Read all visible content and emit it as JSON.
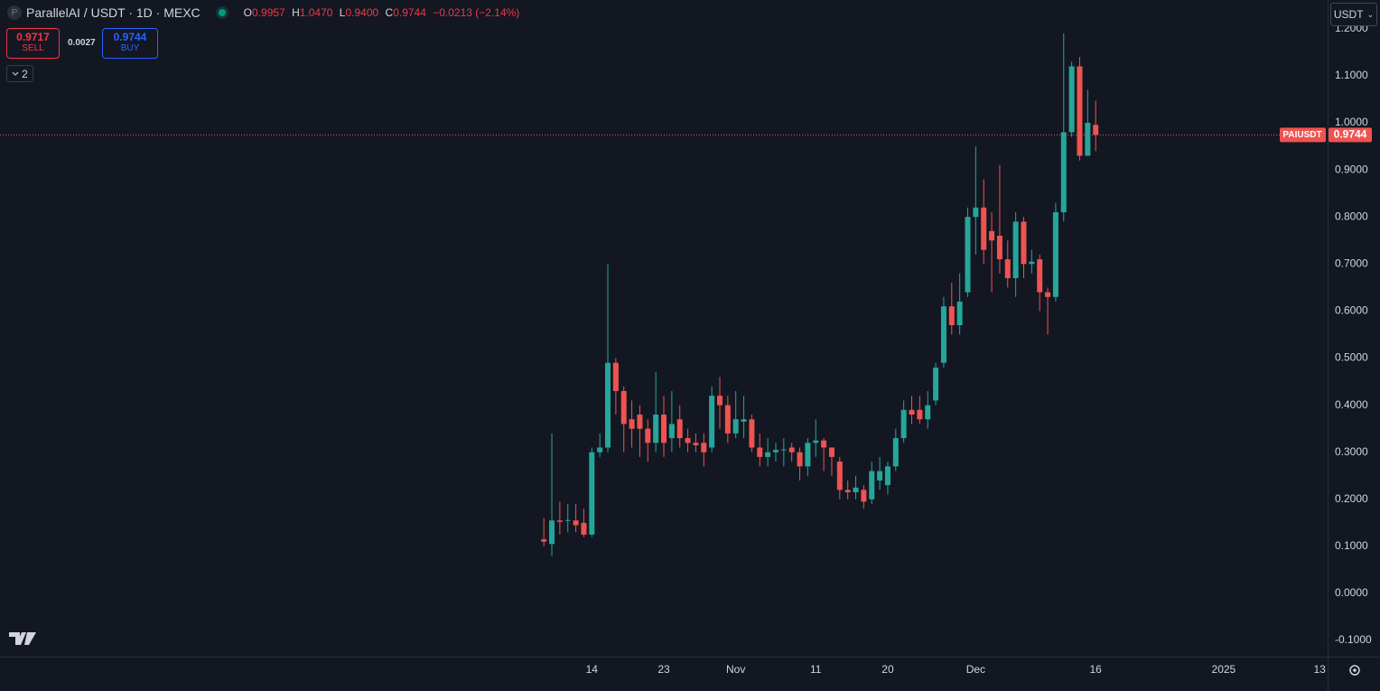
{
  "header": {
    "icon_letter": "P",
    "symbol": "ParallelAI / USDT · 1D · MEXC",
    "open_label": "O",
    "open": "0.9957",
    "high_label": "H",
    "high": "1.0470",
    "low_label": "L",
    "low": "0.9400",
    "close_label": "C",
    "close": "0.9744",
    "change": "−0.0213 (−2.14%)"
  },
  "trade": {
    "sell_price": "0.9717",
    "sell_label": "SELL",
    "spread": "0.0027",
    "buy_price": "0.9744",
    "buy_label": "BUY",
    "indicators_count": "2"
  },
  "currency_button": "USDT",
  "chart_data": {
    "type": "candlestick",
    "symbol_label": "PAIUSDT",
    "last_price": 0.9744,
    "up_color": "#26a69a",
    "down_color": "#ef5350",
    "grid": false,
    "x": [
      "2024-10-08",
      "2024-10-09",
      "2024-10-10",
      "2024-10-11",
      "2024-10-12",
      "2024-10-13",
      "2024-10-14",
      "2024-10-15",
      "2024-10-16",
      "2024-10-17",
      "2024-10-18",
      "2024-10-19",
      "2024-10-20",
      "2024-10-21",
      "2024-10-22",
      "2024-10-23",
      "2024-10-24",
      "2024-10-25",
      "2024-10-26",
      "2024-10-27",
      "2024-10-28",
      "2024-10-29",
      "2024-10-30",
      "2024-10-31",
      "2024-11-01",
      "2024-11-02",
      "2024-11-03",
      "2024-11-04",
      "2024-11-05",
      "2024-11-06",
      "2024-11-07",
      "2024-11-08",
      "2024-11-09",
      "2024-11-10",
      "2024-11-11",
      "2024-11-12",
      "2024-11-13",
      "2024-11-14",
      "2024-11-15",
      "2024-11-16",
      "2024-11-17",
      "2024-11-18",
      "2024-11-19",
      "2024-11-20",
      "2024-11-21",
      "2024-11-22",
      "2024-11-23",
      "2024-11-24",
      "2024-11-25",
      "2024-11-26",
      "2024-11-27",
      "2024-11-28",
      "2024-11-29",
      "2024-11-30",
      "2024-12-01",
      "2024-12-02",
      "2024-12-03",
      "2024-12-04",
      "2024-12-05",
      "2024-12-06",
      "2024-12-07",
      "2024-12-08",
      "2024-12-09",
      "2024-12-10",
      "2024-12-11",
      "2024-12-12",
      "2024-12-13",
      "2024-12-14",
      "2024-12-15",
      "2024-12-16"
    ],
    "open": [
      0.115,
      0.105,
      0.155,
      0.155,
      0.155,
      0.15,
      0.125,
      0.3,
      0.31,
      0.49,
      0.43,
      0.37,
      0.38,
      0.35,
      0.32,
      0.38,
      0.33,
      0.37,
      0.33,
      0.32,
      0.32,
      0.31,
      0.42,
      0.4,
      0.34,
      0.365,
      0.37,
      0.31,
      0.29,
      0.3,
      0.305,
      0.31,
      0.3,
      0.27,
      0.32,
      0.325,
      0.31,
      0.28,
      0.22,
      0.215,
      0.22,
      0.2,
      0.24,
      0.23,
      0.27,
      0.33,
      0.39,
      0.39,
      0.37,
      0.41,
      0.49,
      0.61,
      0.57,
      0.64,
      0.8,
      0.82,
      0.77,
      0.76,
      0.71,
      0.67,
      0.79,
      0.7,
      0.71,
      0.64,
      0.63,
      0.81,
      0.98,
      1.12,
      0.93,
      0.9957
    ],
    "high": [
      0.16,
      0.34,
      0.195,
      0.19,
      0.19,
      0.18,
      0.31,
      0.34,
      0.7,
      0.5,
      0.44,
      0.41,
      0.4,
      0.37,
      0.47,
      0.42,
      0.43,
      0.4,
      0.35,
      0.34,
      0.34,
      0.44,
      0.46,
      0.42,
      0.43,
      0.42,
      0.38,
      0.34,
      0.33,
      0.32,
      0.33,
      0.32,
      0.31,
      0.33,
      0.37,
      0.33,
      0.31,
      0.29,
      0.24,
      0.25,
      0.23,
      0.28,
      0.29,
      0.28,
      0.35,
      0.41,
      0.42,
      0.42,
      0.43,
      0.49,
      0.63,
      0.66,
      0.68,
      0.82,
      0.95,
      0.88,
      0.81,
      0.91,
      0.75,
      0.81,
      0.8,
      0.73,
      0.72,
      0.65,
      0.83,
      1.19,
      1.13,
      1.14,
      1.07,
      1.047
    ],
    "low": [
      0.1,
      0.08,
      0.125,
      0.13,
      0.13,
      0.12,
      0.12,
      0.29,
      0.3,
      0.38,
      0.3,
      0.31,
      0.29,
      0.28,
      0.3,
      0.29,
      0.3,
      0.31,
      0.3,
      0.3,
      0.27,
      0.3,
      0.35,
      0.32,
      0.33,
      0.33,
      0.3,
      0.27,
      0.27,
      0.28,
      0.27,
      0.28,
      0.24,
      0.25,
      0.29,
      0.26,
      0.25,
      0.2,
      0.2,
      0.2,
      0.18,
      0.19,
      0.22,
      0.21,
      0.26,
      0.32,
      0.36,
      0.36,
      0.35,
      0.4,
      0.48,
      0.55,
      0.55,
      0.63,
      0.72,
      0.7,
      0.64,
      0.68,
      0.65,
      0.63,
      0.67,
      0.68,
      0.6,
      0.55,
      0.62,
      0.79,
      0.97,
      0.92,
      0.93,
      0.94
    ],
    "close": [
      0.11,
      0.155,
      0.152,
      0.156,
      0.145,
      0.125,
      0.3,
      0.31,
      0.49,
      0.43,
      0.36,
      0.35,
      0.35,
      0.32,
      0.38,
      0.32,
      0.36,
      0.33,
      0.32,
      0.315,
      0.3,
      0.42,
      0.4,
      0.34,
      0.37,
      0.37,
      0.31,
      0.29,
      0.3,
      0.305,
      0.306,
      0.3,
      0.27,
      0.32,
      0.325,
      0.31,
      0.29,
      0.22,
      0.215,
      0.225,
      0.195,
      0.26,
      0.26,
      0.27,
      0.33,
      0.39,
      0.38,
      0.37,
      0.4,
      0.48,
      0.61,
      0.57,
      0.62,
      0.8,
      0.82,
      0.73,
      0.75,
      0.71,
      0.67,
      0.79,
      0.7,
      0.705,
      0.64,
      0.63,
      0.81,
      0.98,
      1.12,
      0.93,
      1.0,
      0.9744
    ],
    "xlim": [
      "2024-08-01",
      "2025-01-14"
    ],
    "xticks": [
      {
        "value": "2024-10-14",
        "label": "14"
      },
      {
        "value": "2024-10-23",
        "label": "23"
      },
      {
        "value": "2024-11-01",
        "label": "Nov"
      },
      {
        "value": "2024-11-11",
        "label": "11"
      },
      {
        "value": "2024-11-20",
        "label": "20"
      },
      {
        "value": "2024-12-01",
        "label": "Dec"
      },
      {
        "value": "2024-12-16",
        "label": "16"
      },
      {
        "value": "2025-01-01",
        "label": "2025"
      },
      {
        "value": "2025-01-13",
        "label": "13"
      }
    ],
    "ylim": [
      -0.1344,
      1.261
    ],
    "yticks": [
      {
        "value": 1.2,
        "label": "1.2000"
      },
      {
        "value": 1.1,
        "label": "1.1000"
      },
      {
        "value": 1.0,
        "label": "1.0000"
      },
      {
        "value": 0.9,
        "label": "0.9000"
      },
      {
        "value": 0.8,
        "label": "0.8000"
      },
      {
        "value": 0.7,
        "label": "0.7000"
      },
      {
        "value": 0.6,
        "label": "0.6000"
      },
      {
        "value": 0.5,
        "label": "0.5000"
      },
      {
        "value": 0.4,
        "label": "0.4000"
      },
      {
        "value": 0.3,
        "label": "0.3000"
      },
      {
        "value": 0.2,
        "label": "0.2000"
      },
      {
        "value": 0.1,
        "label": "0.1000"
      },
      {
        "value": 0.0,
        "label": "0.0000"
      },
      {
        "value": -0.1,
        "label": "-0.1000"
      }
    ]
  }
}
